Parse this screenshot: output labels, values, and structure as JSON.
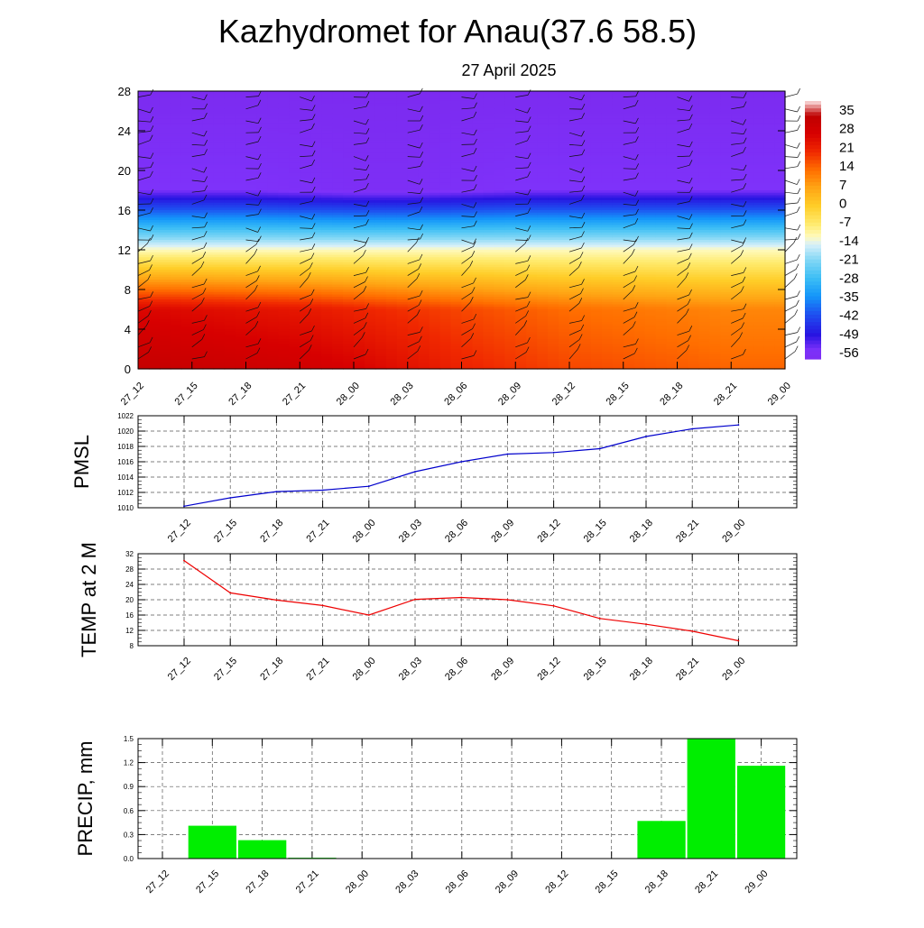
{
  "header": {
    "title": "Kazhydromet for Anau(37.6 58.5)",
    "date": "27 April 2025"
  },
  "time_labels": [
    "27_12",
    "27_15",
    "27_18",
    "27_21",
    "28_00",
    "28_03",
    "28_06",
    "28_09",
    "28_12",
    "28_15",
    "28_18",
    "28_21",
    "29_00"
  ],
  "chart_data": [
    {
      "type": "heatmap",
      "title": "",
      "xlabel": "",
      "ylabel": "",
      "x": [
        "27_12",
        "27_15",
        "27_18",
        "27_21",
        "28_00",
        "28_03",
        "28_06",
        "28_09",
        "28_12",
        "28_15",
        "28_18",
        "28_21",
        "29_00"
      ],
      "y_ticks": [
        0,
        4,
        8,
        12,
        16,
        20,
        24,
        28
      ],
      "ylim": [
        0,
        28
      ],
      "colorbar_labels": [
        "35",
        "28",
        "21",
        "14",
        "7",
        "0",
        "-7",
        "-14",
        "-21",
        "-28",
        "-35",
        "-42",
        "-49",
        "-56"
      ],
      "note_levels_celsius": [
        {
          "level": 0,
          "values": [
            33,
            32,
            31,
            30,
            28,
            25,
            22,
            20,
            18,
            17,
            16,
            15,
            15
          ]
        },
        {
          "level": 6,
          "values": [
            27,
            26,
            25,
            24,
            22,
            20,
            18,
            16,
            14,
            13,
            12,
            11,
            11
          ]
        },
        {
          "level": 12,
          "values": [
            -12,
            -12,
            -12,
            -12,
            -12,
            -12,
            -12,
            -12,
            -12,
            -12,
            -12,
            -12,
            -12
          ]
        },
        {
          "level": 18,
          "values": [
            -56,
            -56,
            -56,
            -57,
            -58,
            -58,
            -57,
            -56,
            -56,
            -56,
            -56,
            -56,
            -56
          ]
        },
        {
          "level": 28,
          "values": [
            -60,
            -60,
            -60,
            -60,
            -60,
            -60,
            -60,
            -60,
            -60,
            -60,
            -60,
            -60,
            -60
          ]
        }
      ]
    },
    {
      "type": "line",
      "title": "",
      "ylabel": "PMSL",
      "xlabel": "",
      "categories": [
        "27_12",
        "27_15",
        "27_18",
        "27_21",
        "28_00",
        "28_03",
        "28_06",
        "28_09",
        "28_12",
        "28_15",
        "28_18",
        "28_21",
        "29_00"
      ],
      "values": [
        1010.2,
        1011.3,
        1012.1,
        1012.3,
        1012.8,
        1014.7,
        1016.0,
        1017.0,
        1017.2,
        1017.7,
        1019.3,
        1020.3,
        1020.8
      ],
      "ylim": [
        1010,
        1022
      ],
      "yticks": [
        1010,
        1012,
        1014,
        1016,
        1018,
        1020,
        1022
      ],
      "color": "#0000cc",
      "grid": true
    },
    {
      "type": "line",
      "title": "",
      "ylabel": "TEMP at 2 M",
      "xlabel": "",
      "categories": [
        "27_12",
        "27_15",
        "27_18",
        "27_21",
        "28_00",
        "28_03",
        "28_06",
        "28_09",
        "28_12",
        "28_15",
        "28_18",
        "28_21",
        "29_00"
      ],
      "values": [
        30.2,
        21.8,
        19.9,
        18.5,
        16.0,
        20.1,
        20.6,
        20.0,
        18.4,
        15.1,
        13.6,
        11.8,
        9.3
      ],
      "ylim": [
        8,
        32
      ],
      "yticks": [
        8,
        12,
        16,
        20,
        24,
        28,
        32
      ],
      "color": "#ee0000",
      "grid": true
    },
    {
      "type": "bar",
      "title": "",
      "ylabel": "PRECIP, mm",
      "xlabel": "",
      "categories": [
        "27_12",
        "27_15",
        "27_18",
        "27_21",
        "28_00",
        "28_03",
        "28_06",
        "28_09",
        "28_12",
        "28_15",
        "28_18",
        "28_21",
        "29_00"
      ],
      "values": [
        0,
        0.41,
        0.23,
        0.01,
        0,
        0,
        0,
        0,
        0,
        0,
        0.47,
        1.5,
        1.16
      ],
      "ylim": [
        0,
        1.5
      ],
      "yticks": [
        "0.0",
        "0.3",
        "0.6",
        "0.9",
        "1.2",
        "1.5"
      ],
      "color": "#00ee00",
      "grid": true
    }
  ]
}
